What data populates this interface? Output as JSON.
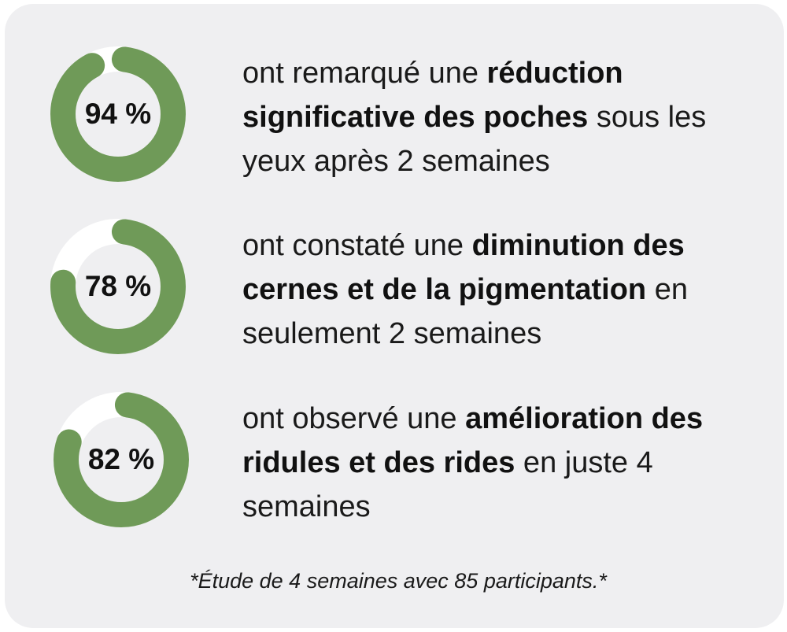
{
  "colors": {
    "ring": "#6f9a58",
    "track": "#ffffff",
    "card": "#efeff1"
  },
  "stats": [
    {
      "percent_label": "94 %",
      "percent_value": 94,
      "text_before": "ont remarqué une ",
      "text_bold": "réduction significative des poches",
      "text_after": " sous les yeux après 2 semaines"
    },
    {
      "percent_label": "78 %",
      "percent_value": 78,
      "text_before": "ont constaté une ",
      "text_bold": "diminution des cernes et de la pigmentation",
      "text_after": " en seulement 2 semaines"
    },
    {
      "percent_label": "82 %",
      "percent_value": 82,
      "text_before": "ont observé une ",
      "text_bold": "amélioration des ridules et des rides",
      "text_after": " en juste 4 semaines"
    }
  ],
  "footnote": "*Étude de 4 semaines avec 85 participants.*"
}
